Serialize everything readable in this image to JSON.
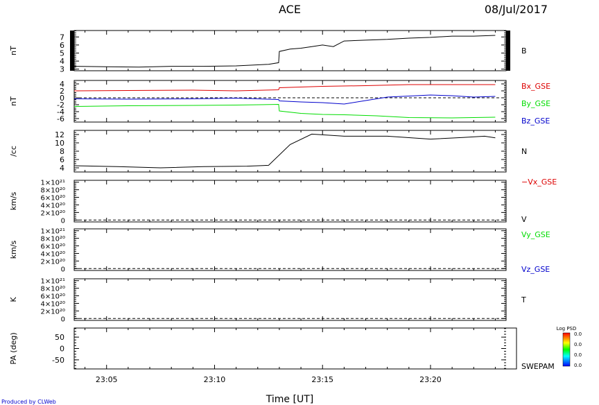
{
  "header": {
    "title": "ACE",
    "date": "08/Jul/2017"
  },
  "footer": {
    "credit": "Produced by CLWeb",
    "xlabel": "Time [UT]"
  },
  "colors": {
    "red": "#dd0000",
    "green": "#00dd00",
    "blue": "#0000cc",
    "black": "#000000"
  },
  "chart_data": [
    {
      "type": "line",
      "ylabel": "nT",
      "ylim": [
        2.8,
        7.8
      ],
      "yticks": [
        3,
        4,
        5,
        6,
        7
      ],
      "series": [
        {
          "name": "B",
          "color": "#000000",
          "x": [
            "23:03:30",
            "23:05:00",
            "23:06:30",
            "23:08:00",
            "23:09:30",
            "23:11:00",
            "23:12:30",
            "23:12:58",
            "23:13:00",
            "23:13:30",
            "23:14:00",
            "23:14:30",
            "23:15:00",
            "23:15:30",
            "23:16:00",
            "23:17:00",
            "23:18:00",
            "23:19:00",
            "23:20:00",
            "23:21:00",
            "23:22:00",
            "23:23:00"
          ],
          "y": [
            3.35,
            3.3,
            3.25,
            3.35,
            3.35,
            3.4,
            3.6,
            3.8,
            5.2,
            5.5,
            5.6,
            5.8,
            6.0,
            5.8,
            6.5,
            6.6,
            6.7,
            6.85,
            6.95,
            7.1,
            7.1,
            7.2
          ]
        }
      ]
    },
    {
      "type": "line",
      "ylabel": "nT",
      "ylim": [
        -7,
        5
      ],
      "yticks": [
        -6,
        -4,
        -2,
        0,
        2,
        4
      ],
      "zero_line": true,
      "series": [
        {
          "name": "Bx_GSE",
          "color": "#dd0000",
          "x": [
            "23:03:30",
            "23:06:00",
            "23:09:00",
            "23:11:00",
            "23:12:58",
            "23:13:00",
            "23:15:00",
            "23:17:00",
            "23:19:00",
            "23:21:00",
            "23:23:00"
          ],
          "y": [
            2.0,
            2.1,
            2.2,
            2.0,
            2.3,
            2.9,
            3.3,
            3.5,
            3.8,
            3.8,
            3.8
          ]
        },
        {
          "name": "By_GSE",
          "color": "#00dd00",
          "x": [
            "23:03:30",
            "23:06:00",
            "23:09:00",
            "23:11:00",
            "23:12:58",
            "23:13:00",
            "23:14:00",
            "23:15:00",
            "23:16:00",
            "23:17:30",
            "23:19:00",
            "23:21:00",
            "23:23:00"
          ],
          "y": [
            -2.5,
            -2.3,
            -2.2,
            -2.1,
            -1.9,
            -3.8,
            -4.5,
            -4.8,
            -4.9,
            -5.2,
            -5.7,
            -5.8,
            -5.6
          ]
        },
        {
          "name": "Bz_GSE",
          "color": "#0000cc",
          "x": [
            "23:03:30",
            "23:06:00",
            "23:09:00",
            "23:11:00",
            "23:12:58",
            "23:13:00",
            "23:14:00",
            "23:15:00",
            "23:16:00",
            "23:17:00",
            "23:18:00",
            "23:19:00",
            "23:20:00",
            "23:21:00",
            "23:22:00",
            "23:23:00"
          ],
          "y": [
            -0.3,
            -0.4,
            -0.3,
            -0.1,
            -0.5,
            -0.9,
            -1.2,
            -1.4,
            -1.8,
            -0.8,
            0.2,
            0.5,
            0.8,
            0.6,
            0.2,
            0.4
          ]
        }
      ]
    },
    {
      "type": "line",
      "ylabel": "/cc",
      "ylim": [
        3,
        13
      ],
      "yticks": [
        4,
        6,
        8,
        10,
        12
      ],
      "series": [
        {
          "name": "N",
          "color": "#000000",
          "x": [
            "23:03:30",
            "23:05:30",
            "23:07:30",
            "23:09:30",
            "23:11:30",
            "23:12:30",
            "23:13:30",
            "23:14:30",
            "23:16:00",
            "23:18:00",
            "23:20:00",
            "23:21:30",
            "23:22:30",
            "23:23:00"
          ],
          "y": [
            4.5,
            4.3,
            4.0,
            4.3,
            4.4,
            4.6,
            9.6,
            12.1,
            11.6,
            11.6,
            10.9,
            11.3,
            11.6,
            11.2
          ]
        }
      ]
    },
    {
      "type": "line",
      "ylabel": "km/s",
      "ylim": [
        -5e+19,
        1.05e+21
      ],
      "yticklabels": [
        "0",
        "2×10²⁰",
        "4×10²⁰",
        "6×10²⁰",
        "8×10²⁰",
        "1×10²¹"
      ],
      "zero_line": true,
      "series": [
        {
          "name": "−Vx_GSE",
          "color": "#dd0000",
          "x": [],
          "y": []
        }
      ],
      "right_label": "V"
    },
    {
      "type": "line",
      "ylabel": "km/s",
      "ylim": [
        -5e+19,
        1.05e+21
      ],
      "yticklabels": [
        "0",
        "2×10²⁰",
        "4×10²⁰",
        "6×10²⁰",
        "8×10²⁰",
        "1×10²¹"
      ],
      "zero_line": true,
      "series": [
        {
          "name": "Vy_GSE",
          "color": "#00dd00",
          "x": [],
          "y": []
        },
        {
          "name": "Vz_GSE",
          "color": "#0000cc",
          "x": [],
          "y": []
        }
      ]
    },
    {
      "type": "line",
      "ylabel": "K",
      "ylim": [
        -5e+19,
        1.05e+21
      ],
      "yticklabels": [
        "0",
        "2×10²⁰",
        "4×10²⁰",
        "6×10²⁰",
        "8×10²⁰",
        "1×10²¹"
      ],
      "zero_line": true,
      "series": [
        {
          "name": "T",
          "color": "#000000",
          "x": [],
          "y": []
        }
      ]
    },
    {
      "type": "heatmap",
      "ylabel": "PA (deg)",
      "ylim": [
        -90,
        90
      ],
      "yticks": [
        -50,
        0,
        50
      ],
      "right_label": "SWEPAM",
      "colorbar": {
        "title": "Log PSD",
        "ticks": [
          "0.0",
          "0.0",
          "0.0",
          "0.0"
        ]
      }
    }
  ],
  "xaxis": {
    "start": "23:03:30",
    "end": "23:23:30",
    "ticks": [
      "23:05",
      "23:10",
      "23:15",
      "23:20"
    ]
  }
}
